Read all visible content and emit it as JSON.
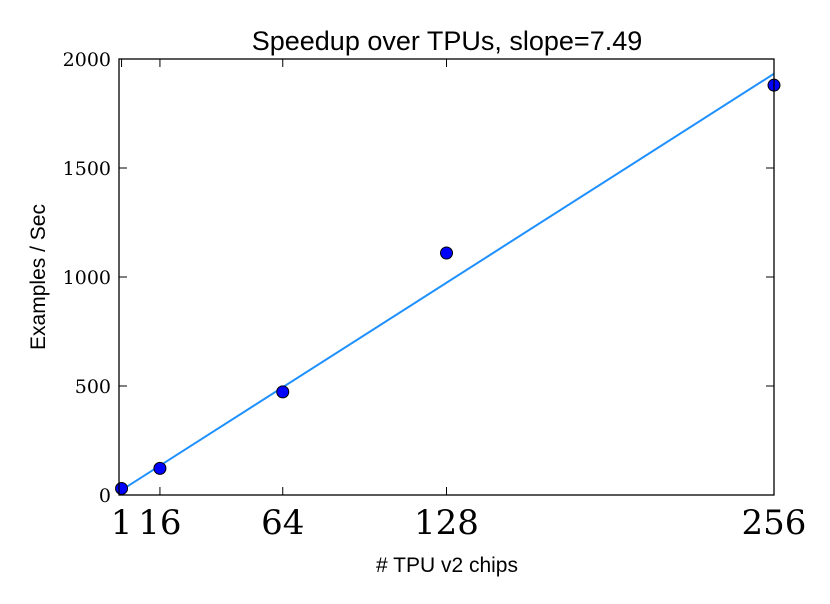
{
  "chart_data": {
    "type": "scatter",
    "title": "Speedup over TPUs, slope=7.49",
    "xlabel": "# TPU v2 chips",
    "ylabel": "Examples / Sec",
    "xlim": [
      0,
      256
    ],
    "ylim": [
      0,
      2000
    ],
    "x_ticks": [
      1,
      16,
      64,
      128,
      256
    ],
    "x_tick_labels": [
      "1",
      "16",
      "64",
      "128",
      "256"
    ],
    "y_ticks": [
      0,
      500,
      1000,
      1500,
      2000
    ],
    "y_tick_labels": [
      "0",
      "500",
      "1000",
      "1500",
      "2000"
    ],
    "grid": false,
    "legend": "none",
    "points": [
      {
        "x": 1,
        "y": 30
      },
      {
        "x": 16,
        "y": 122
      },
      {
        "x": 64,
        "y": 473
      },
      {
        "x": 128,
        "y": 1110
      },
      {
        "x": 256,
        "y": 1880
      }
    ],
    "fit_line": {
      "slope": 7.49,
      "intercept": 15
    },
    "colors": {
      "point_fill": "#0000ff",
      "point_stroke": "#000000",
      "fit_line": "#1e90ff",
      "axes": "#000000"
    }
  }
}
